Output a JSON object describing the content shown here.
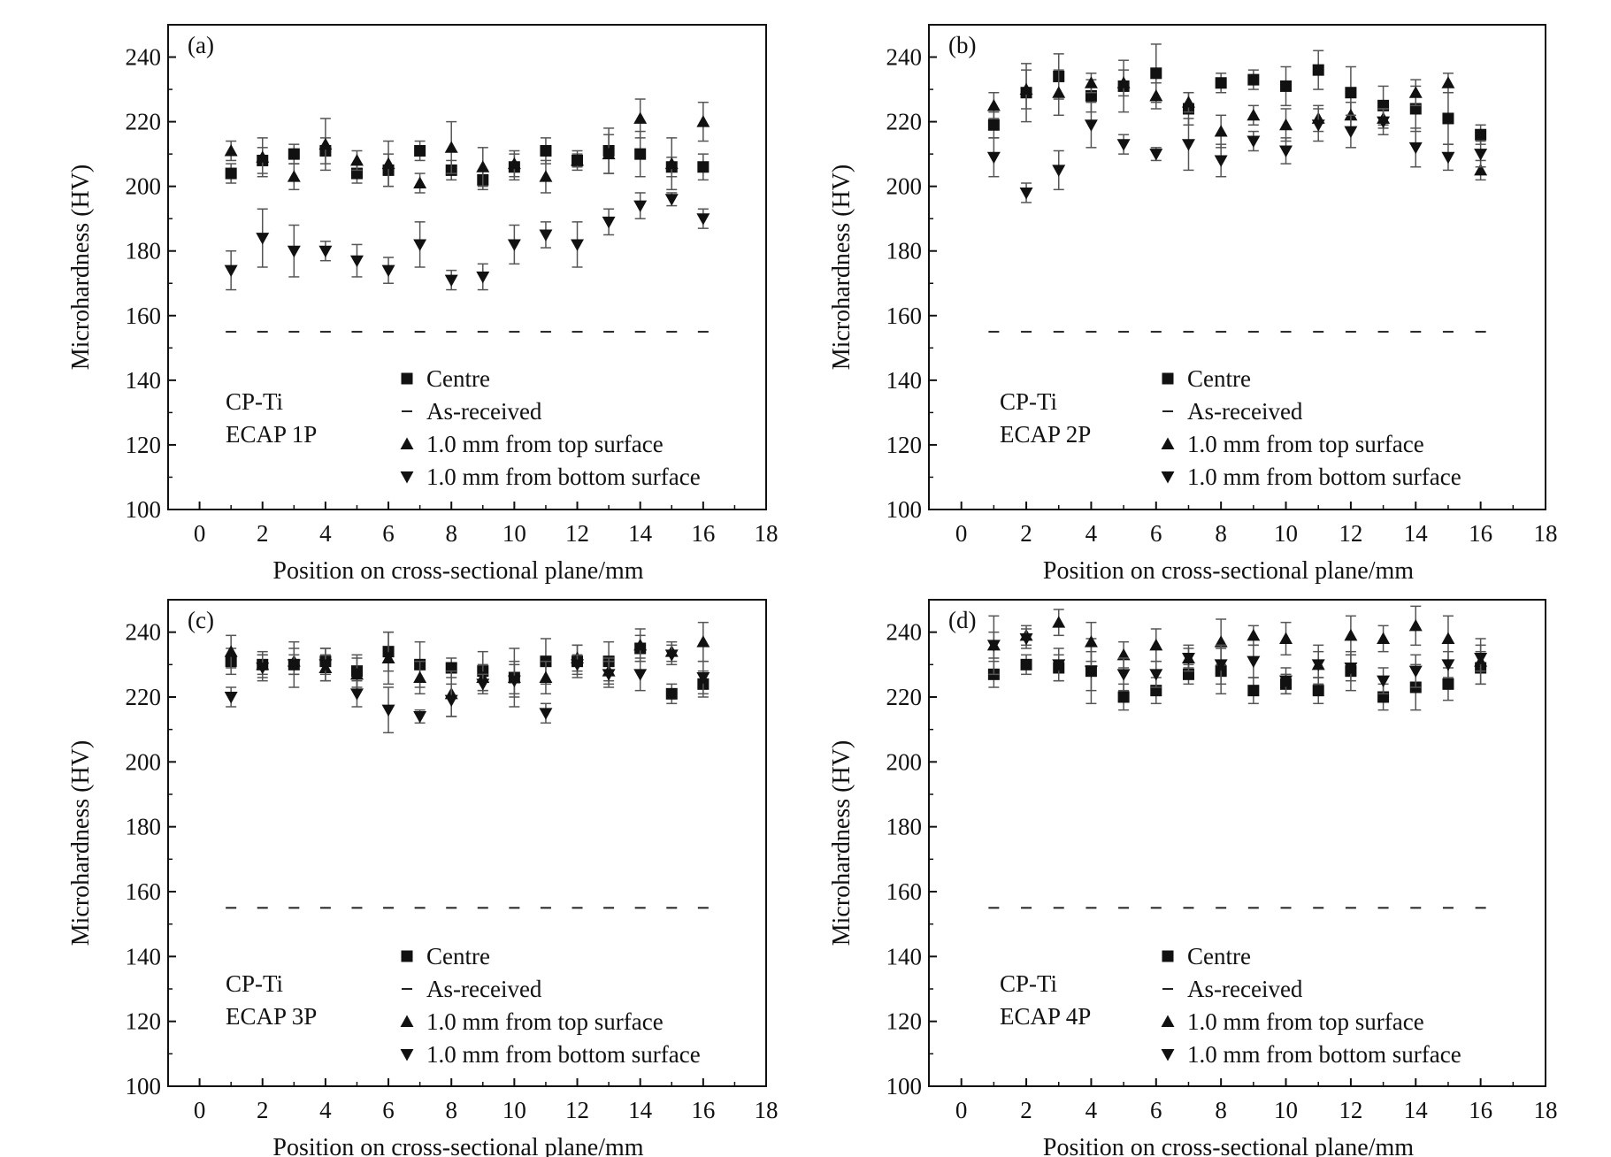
{
  "chart_data": [
    {
      "type": "scatter",
      "panel_label": "(a)",
      "annotation_lines": [
        "CP-Ti",
        "ECAP 1P"
      ],
      "xlabel": "Position on cross-sectional plane/mm",
      "ylabel": "Microhardness (HV)",
      "xlim": [
        -1,
        18
      ],
      "ylim": [
        100,
        250
      ],
      "xticks": [
        "0",
        "2",
        "4",
        "6",
        "8",
        "10",
        "12",
        "14",
        "16",
        "18"
      ],
      "yticks": [
        "100",
        "120",
        "140",
        "160",
        "180",
        "200",
        "220",
        "240"
      ],
      "grid": false,
      "legend_position": "bottom-right",
      "x": [
        1,
        2,
        3,
        4,
        5,
        6,
        7,
        8,
        9,
        10,
        11,
        12,
        13,
        14,
        15,
        16
      ],
      "series": [
        {
          "name": "Centre",
          "marker": "square",
          "values": [
            204,
            208,
            210,
            211,
            204,
            205,
            211,
            205,
            202,
            206,
            211,
            208,
            211,
            210,
            206,
            206
          ],
          "errors": [
            3,
            4,
            3,
            4,
            3,
            5,
            3,
            3,
            3,
            4,
            4,
            2,
            7,
            7,
            3,
            4
          ]
        },
        {
          "name": "As-received",
          "marker": "dash",
          "values": [
            155,
            155,
            155,
            155,
            155,
            155,
            155,
            155,
            155,
            155,
            155,
            155,
            155,
            155,
            155,
            155
          ]
        },
        {
          "name": "1.0 mm from top surface",
          "marker": "triangle-up",
          "values": [
            211,
            209,
            203,
            213,
            208,
            207,
            201,
            212,
            206,
            207,
            203,
            208,
            210,
            221,
            207,
            220
          ],
          "errors": [
            3,
            6,
            4,
            8,
            3,
            7,
            3,
            8,
            6,
            4,
            5,
            3,
            6,
            6,
            8,
            6
          ]
        },
        {
          "name": "1.0 mm from bottom surface",
          "marker": "triangle-down",
          "values": [
            174,
            184,
            180,
            180,
            177,
            174,
            182,
            171,
            172,
            182,
            185,
            182,
            189,
            194,
            196,
            190
          ],
          "errors": [
            6,
            9,
            8,
            3,
            5,
            4,
            7,
            3,
            4,
            6,
            4,
            7,
            4,
            4,
            2,
            3
          ]
        }
      ]
    },
    {
      "type": "scatter",
      "panel_label": "(b)",
      "annotation_lines": [
        "CP-Ti",
        "ECAP 2P"
      ],
      "xlabel": "Position on cross-sectional plane/mm",
      "ylabel": "Microhardness (HV)",
      "xlim": [
        -1,
        18
      ],
      "ylim": [
        100,
        250
      ],
      "xticks": [
        "0",
        "2",
        "4",
        "6",
        "8",
        "10",
        "12",
        "14",
        "16",
        "18"
      ],
      "yticks": [
        "100",
        "120",
        "140",
        "160",
        "180",
        "200",
        "220",
        "240"
      ],
      "grid": false,
      "legend_position": "bottom-right",
      "x": [
        1,
        2,
        3,
        4,
        5,
        6,
        7,
        8,
        9,
        10,
        11,
        12,
        13,
        14,
        15,
        16
      ],
      "series": [
        {
          "name": "Centre",
          "marker": "square",
          "values": [
            219,
            229,
            234,
            228,
            231,
            235,
            224,
            232,
            233,
            231,
            236,
            229,
            225,
            224,
            221,
            216
          ],
          "errors": [
            4,
            9,
            7,
            5,
            8,
            9,
            5,
            3,
            3,
            6,
            6,
            8,
            6,
            7,
            8,
            3
          ]
        },
        {
          "name": "As-received",
          "marker": "dash",
          "values": [
            155,
            155,
            155,
            155,
            155,
            155,
            155,
            155,
            155,
            155,
            155,
            155,
            155,
            155,
            155,
            155
          ]
        },
        {
          "name": "1.0 mm from top surface",
          "marker": "triangle-up",
          "values": [
            225,
            230,
            229,
            232,
            232,
            228,
            226,
            217,
            222,
            219,
            221,
            222,
            221,
            229,
            232,
            205
          ],
          "errors": [
            4,
            6,
            7,
            3,
            4,
            4,
            3,
            5,
            3,
            5,
            4,
            4,
            3,
            4,
            3,
            3
          ]
        },
        {
          "name": "1.0 mm from bottom surface",
          "marker": "triangle-down",
          "values": [
            209,
            198,
            205,
            219,
            213,
            210,
            213,
            208,
            214,
            211,
            219,
            217,
            220,
            212,
            209,
            210
          ],
          "errors": [
            6,
            3,
            6,
            7,
            3,
            2,
            8,
            5,
            3,
            4,
            5,
            5,
            4,
            6,
            4,
            4
          ]
        }
      ]
    },
    {
      "type": "scatter",
      "panel_label": "(c)",
      "annotation_lines": [
        "CP-Ti",
        "ECAP 3P"
      ],
      "xlabel": "Position on cross-sectional plane/mm",
      "ylabel": "Microhardness (HV)",
      "xlim": [
        -1,
        18
      ],
      "ylim": [
        100,
        250
      ],
      "xticks": [
        "0",
        "2",
        "4",
        "6",
        "8",
        "10",
        "12",
        "14",
        "16",
        "18"
      ],
      "yticks": [
        "100",
        "120",
        "140",
        "160",
        "180",
        "200",
        "220",
        "240"
      ],
      "grid": false,
      "legend_position": "bottom-right",
      "x": [
        1,
        2,
        3,
        4,
        5,
        6,
        7,
        8,
        9,
        10,
        11,
        12,
        13,
        14,
        15,
        16
      ],
      "series": [
        {
          "name": "Centre",
          "marker": "square",
          "values": [
            231,
            230,
            230,
            231,
            228,
            234,
            230,
            229,
            228,
            226,
            231,
            231,
            231,
            235,
            221,
            224
          ],
          "errors": [
            4,
            4,
            7,
            4,
            5,
            6,
            7,
            3,
            6,
            9,
            7,
            5,
            6,
            4,
            3,
            4
          ]
        },
        {
          "name": "As-received",
          "marker": "dash",
          "values": [
            155,
            155,
            155,
            155,
            155,
            155,
            155,
            155,
            155,
            155,
            155,
            155,
            155,
            155,
            155,
            155
          ]
        },
        {
          "name": "1.0 mm from top surface",
          "marker": "triangle-up",
          "values": [
            234,
            230,
            231,
            229,
            227,
            232,
            226,
            221,
            226,
            226,
            226,
            232,
            228,
            236,
            234,
            237
          ],
          "errors": [
            5,
            3,
            4,
            4,
            5,
            8,
            5,
            7,
            4,
            5,
            5,
            4,
            4,
            5,
            3,
            6
          ]
        },
        {
          "name": "1.0 mm from bottom surface",
          "marker": "triangle-down",
          "values": [
            220,
            229,
            230,
            230,
            221,
            216,
            214,
            219,
            224,
            225,
            215,
            230,
            227,
            227,
            233,
            226
          ],
          "errors": [
            3,
            4,
            3,
            5,
            4,
            7,
            2,
            5,
            3,
            5,
            3,
            3,
            4,
            5,
            3,
            5
          ]
        }
      ]
    },
    {
      "type": "scatter",
      "panel_label": "(d)",
      "annotation_lines": [
        "CP-Ti",
        "ECAP 4P"
      ],
      "xlabel": "Position on cross-sectional plane/mm",
      "ylabel": "Microhardness (HV)",
      "xlim": [
        -1,
        18
      ],
      "ylim": [
        100,
        250
      ],
      "xticks": [
        "0",
        "2",
        "4",
        "6",
        "8",
        "10",
        "12",
        "14",
        "16",
        "18"
      ],
      "yticks": [
        "100",
        "120",
        "140",
        "160",
        "180",
        "200",
        "220",
        "240"
      ],
      "grid": false,
      "legend_position": "bottom-right",
      "x": [
        1,
        2,
        3,
        4,
        5,
        6,
        7,
        8,
        9,
        10,
        11,
        12,
        13,
        14,
        15,
        16
      ],
      "series": [
        {
          "name": "Centre",
          "marker": "square",
          "values": [
            227,
            230,
            229,
            228,
            220,
            222,
            227,
            228,
            222,
            224,
            222,
            228,
            220,
            223,
            224,
            229
          ],
          "errors": [
            4,
            3,
            4,
            10,
            4,
            4,
            3,
            7,
            4,
            3,
            4,
            6,
            4,
            7,
            5,
            5
          ]
        },
        {
          "name": "As-received",
          "marker": "dash",
          "values": [
            155,
            155,
            155,
            155,
            155,
            155,
            155,
            155,
            155,
            155,
            155,
            155,
            155,
            155,
            155,
            155
          ]
        },
        {
          "name": "1.0 mm from top surface",
          "marker": "triangle-up",
          "values": [
            236,
            239,
            243,
            237,
            233,
            236,
            232,
            237,
            239,
            238,
            230,
            239,
            238,
            242,
            238,
            231
          ],
          "errors": [
            9,
            3,
            4,
            6,
            4,
            5,
            4,
            7,
            3,
            5,
            4,
            6,
            4,
            6,
            7,
            7
          ]
        },
        {
          "name": "1.0 mm from bottom surface",
          "marker": "triangle-down",
          "values": [
            236,
            238,
            230,
            228,
            227,
            227,
            232,
            230,
            231,
            225,
            230,
            229,
            225,
            228,
            230,
            232
          ],
          "errors": [
            4,
            3,
            5,
            6,
            5,
            4,
            3,
            6,
            5,
            4,
            6,
            4,
            4,
            5,
            4,
            4
          ]
        }
      ]
    }
  ]
}
